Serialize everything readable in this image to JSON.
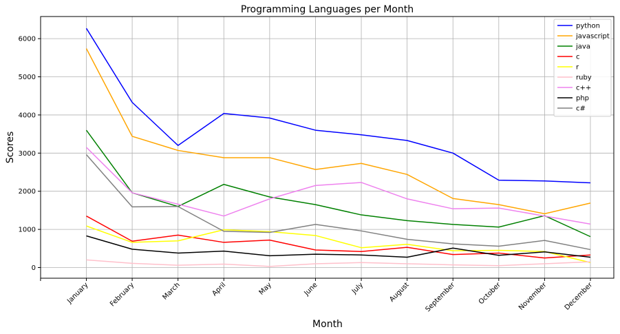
{
  "chart_data": {
    "type": "line",
    "title": "Programming Languages per Month",
    "xlabel": "Month",
    "ylabel": "Scores",
    "categories": [
      "January",
      "February",
      "March",
      "April",
      "May",
      "June",
      "July",
      "August",
      "September",
      "October",
      "November",
      "December"
    ],
    "y_ticks": [
      0,
      1000,
      2000,
      3000,
      4000,
      5000,
      6000
    ],
    "ylim": [
      -280,
      6580
    ],
    "grid": true,
    "legend_position": "top-right",
    "series": [
      {
        "name": "python",
        "color": "#0000ff",
        "values": [
          6270,
          4330,
          3200,
          4040,
          3920,
          3600,
          3480,
          3330,
          3000,
          2290,
          2270,
          2220
        ]
      },
      {
        "name": "javascript",
        "color": "#ffa500",
        "values": [
          5740,
          3440,
          3070,
          2880,
          2880,
          2570,
          2730,
          2440,
          1810,
          1650,
          1410,
          1690
        ]
      },
      {
        "name": "java",
        "color": "#008000",
        "values": [
          3600,
          1960,
          1600,
          2180,
          1850,
          1650,
          1380,
          1230,
          1130,
          1060,
          1360,
          810
        ]
      },
      {
        "name": "c",
        "color": "#ff0000",
        "values": [
          1350,
          690,
          850,
          660,
          720,
          460,
          420,
          530,
          340,
          380,
          250,
          330
        ]
      },
      {
        "name": "r",
        "color": "#ffff00",
        "values": [
          1090,
          660,
          700,
          990,
          940,
          840,
          520,
          610,
          440,
          450,
          420,
          130
        ]
      },
      {
        "name": "ruby",
        "color": "#ffc0cb",
        "values": [
          200,
          110,
          60,
          90,
          30,
          100,
          130,
          100,
          70,
          50,
          100,
          150
        ]
      },
      {
        "name": "c++",
        "color": "#ee82ee",
        "values": [
          3150,
          1960,
          1660,
          1350,
          1800,
          2150,
          2230,
          1800,
          1540,
          1560,
          1350,
          1140
        ]
      },
      {
        "name": "php",
        "color": "#000000",
        "values": [
          830,
          480,
          380,
          430,
          310,
          350,
          330,
          270,
          510,
          320,
          410,
          270
        ]
      },
      {
        "name": "c#",
        "color": "#808080",
        "values": [
          2960,
          1590,
          1600,
          950,
          920,
          1130,
          960,
          740,
          620,
          560,
          710,
          470
        ]
      }
    ]
  }
}
